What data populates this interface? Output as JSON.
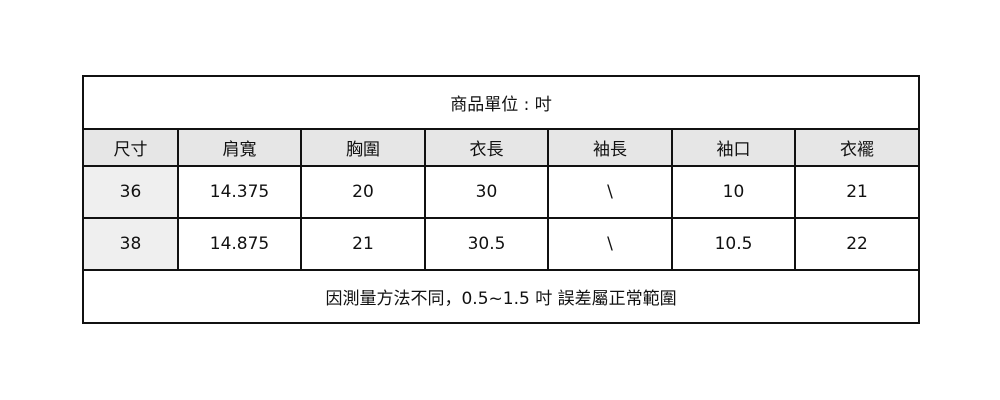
{
  "title": "商品單位 : 吋",
  "headers": [
    "尺寸",
    "肩寬",
    "胸圍",
    "衣長",
    "袖長",
    "袖口",
    "衣襬"
  ],
  "rows": [
    [
      "36",
      "14.375",
      "20",
      "30",
      "\\",
      "10",
      "21"
    ],
    [
      "38",
      "14.875",
      "21",
      "30.5",
      "\\",
      "10.5",
      "22"
    ]
  ],
  "footer": "因測量方法不同，0.5~1.5 吋 誤差屬正常範圍",
  "colors": {
    "header_bg": "#e6e6e6",
    "first_col_bg": "#efefef",
    "border": "#111111"
  }
}
